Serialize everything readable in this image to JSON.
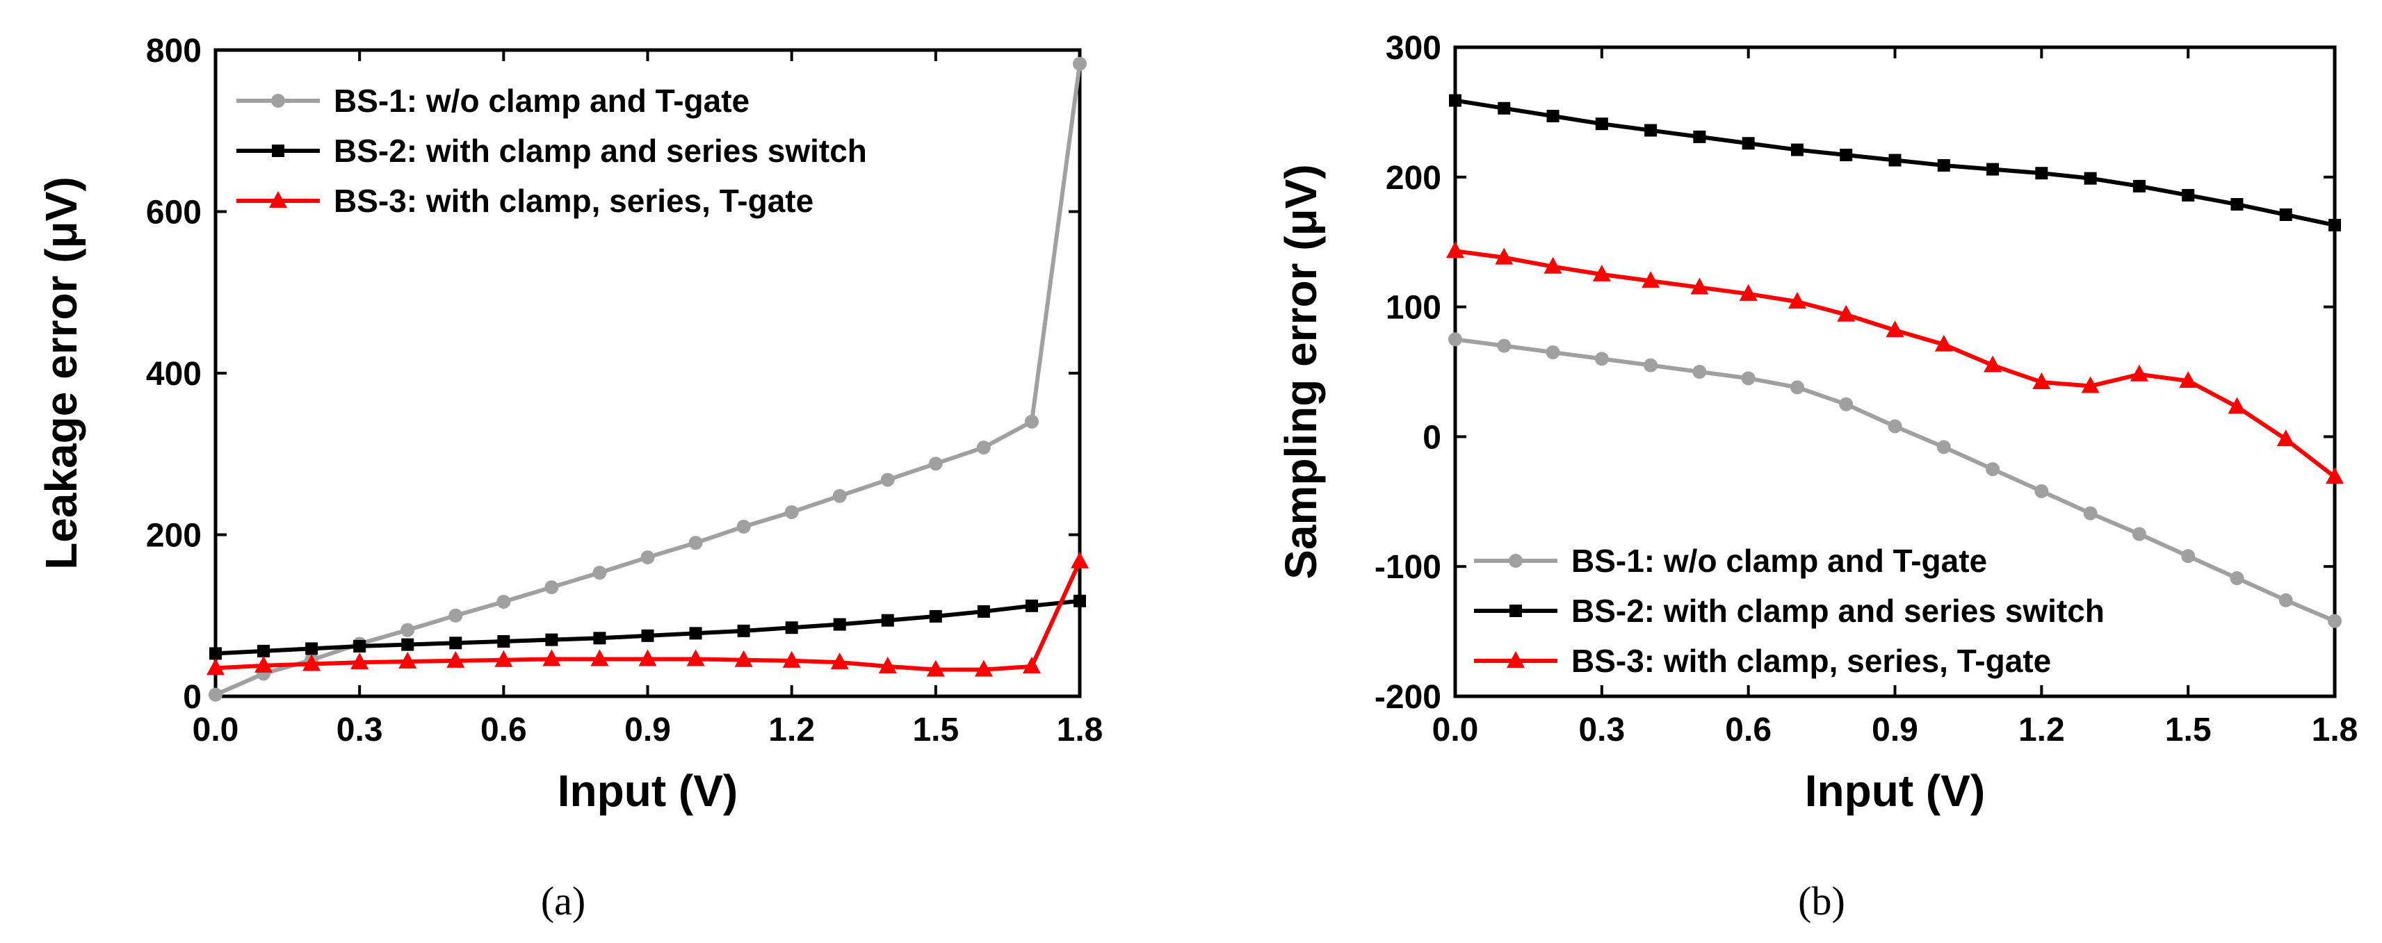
{
  "chart_data": [
    {
      "type": "line",
      "panel_label": "(a)",
      "xlabel": "Input (V)",
      "ylabel": "Leakage error (μV)",
      "xlim": [
        0,
        1.8
      ],
      "ylim": [
        0,
        800
      ],
      "xticks": [
        0,
        0.3,
        0.6,
        0.9,
        1.2,
        1.5,
        1.8
      ],
      "xtick_labels": [
        "0.0",
        "0.3",
        "0.6",
        "0.9",
        "1.2",
        "1.5",
        "1.8"
      ],
      "yticks": [
        0,
        200,
        400,
        600,
        800
      ],
      "ytick_labels": [
        "0",
        "200",
        "400",
        "600",
        "800"
      ],
      "legend_position": "top-left",
      "x": [
        0,
        0.1,
        0.2,
        0.3,
        0.4,
        0.5,
        0.6,
        0.7,
        0.8,
        0.9,
        1.0,
        1.1,
        1.2,
        1.3,
        1.4,
        1.5,
        1.6,
        1.7,
        1.8
      ],
      "series": [
        {
          "name": "BS-1: w/o clamp and T-gate",
          "color": "#a0a0a0",
          "marker": "circle",
          "values": [
            2,
            28,
            45,
            65,
            82,
            100,
            117,
            135,
            153,
            172,
            190,
            210,
            228,
            248,
            268,
            288,
            308,
            340,
            783
          ]
        },
        {
          "name": "BS-2: with clamp and series switch",
          "color": "#000000",
          "marker": "square",
          "values": [
            53,
            56,
            59,
            62,
            64,
            66,
            68,
            70,
            72,
            75,
            78,
            81,
            85,
            89,
            94,
            99,
            105,
            112,
            118
          ]
        },
        {
          "name": "BS-3: with clamp, series, T-gate",
          "color": "#ff0000",
          "marker": "triangle",
          "values": [
            35,
            38,
            40,
            42,
            43,
            44,
            45,
            46,
            46,
            46,
            46,
            45,
            44,
            42,
            37,
            33,
            33,
            37,
            167
          ]
        }
      ]
    },
    {
      "type": "line",
      "panel_label": "(b)",
      "xlabel": "Input (V)",
      "ylabel": "Sampling error (μV)",
      "xlim": [
        0,
        1.8
      ],
      "ylim": [
        -200,
        300
      ],
      "xticks": [
        0,
        0.3,
        0.6,
        0.9,
        1.2,
        1.5,
        1.8
      ],
      "xtick_labels": [
        "0.0",
        "0.3",
        "0.6",
        "0.9",
        "1.2",
        "1.5",
        "1.8"
      ],
      "yticks": [
        -200,
        -100,
        0,
        100,
        200,
        300
      ],
      "ytick_labels": [
        "-200",
        "-100",
        "0",
        "100",
        "200",
        "300"
      ],
      "legend_position": "bottom-left",
      "x": [
        0,
        0.1,
        0.2,
        0.3,
        0.4,
        0.5,
        0.6,
        0.7,
        0.8,
        0.9,
        1.0,
        1.1,
        1.2,
        1.3,
        1.4,
        1.5,
        1.6,
        1.7,
        1.8
      ],
      "series": [
        {
          "name": "BS-1: w/o clamp and T-gate",
          "color": "#a0a0a0",
          "marker": "circle",
          "values": [
            75,
            70,
            65,
            60,
            55,
            50,
            45,
            38,
            25,
            8,
            -8,
            -25,
            -42,
            -59,
            -75,
            -92,
            -109,
            -126,
            -142
          ]
        },
        {
          "name": "BS-2: with clamp and series switch",
          "color": "#000000",
          "marker": "square",
          "values": [
            259,
            253,
            247,
            241,
            236,
            231,
            226,
            221,
            217,
            213,
            209,
            206,
            203,
            199,
            193,
            186,
            179,
            171,
            163
          ]
        },
        {
          "name": "BS-3: with clamp, series, T-gate",
          "color": "#ff0000",
          "marker": "triangle",
          "values": [
            143,
            138,
            131,
            125,
            120,
            115,
            110,
            104,
            94,
            82,
            71,
            55,
            42,
            39,
            48,
            43,
            23,
            -2,
            -31
          ]
        }
      ]
    }
  ]
}
